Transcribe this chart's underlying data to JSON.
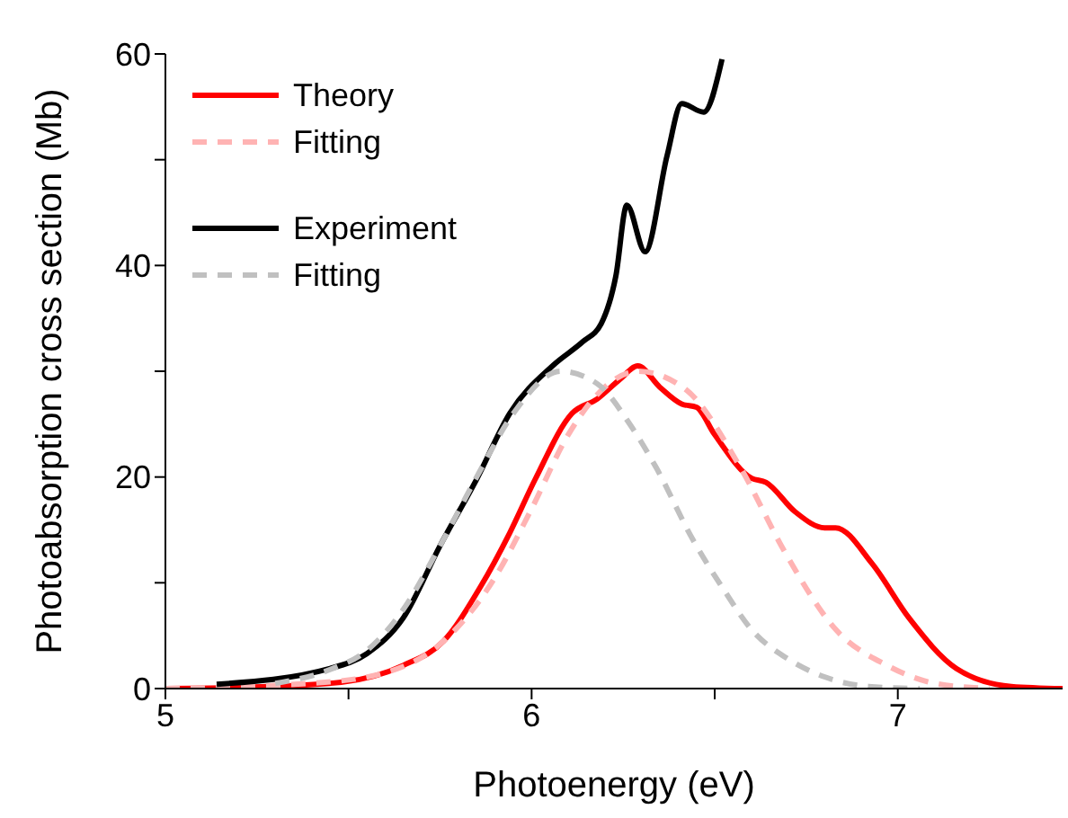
{
  "chart_data": {
    "type": "line",
    "xlabel": "Photoenergy (eV)",
    "ylabel": "Photoabsorption cross section (Mb)",
    "xlim": [
      5,
      7.45
    ],
    "xticks": [
      5,
      {
        "value": 5.5,
        "label": null
      },
      6,
      {
        "value": 6.5,
        "label": null
      },
      7
    ],
    "ylim": [
      0,
      60
    ],
    "yticks": [
      0,
      {
        "value": 10,
        "label": null
      },
      20,
      {
        "value": 30,
        "label": null
      },
      40,
      {
        "value": 50,
        "label": null
      },
      60
    ],
    "grid": false,
    "legend": "top left",
    "marker": "none",
    "series": [
      {
        "name": "Theory",
        "color": "#ff0000",
        "line_style": "solid",
        "x": [
          5,
          5.2,
          5.48,
          5.65,
          5.76,
          5.86,
          5.94,
          6.01,
          6.11,
          6.18,
          6.24,
          6.29,
          6.35,
          6.41,
          6.45,
          6.5,
          6.6,
          6.64,
          6.72,
          6.8,
          6.83,
          6.93,
          7.03,
          7.16,
          7.31,
          7.45
        ],
        "values": [
          0,
          0.1,
          0.6,
          2.2,
          4.5,
          9.6,
          14.7,
          19.8,
          26,
          27.4,
          29.2,
          30.5,
          28.5,
          26.9,
          26.6,
          24,
          19.9,
          19.5,
          16.7,
          15.2,
          15.2,
          11.8,
          6.7,
          1.9,
          0.2,
          0
        ]
      },
      {
        "name": "Fitting",
        "color": "#ffb3b3",
        "line_style": "dashed",
        "x": [
          5,
          5.4,
          5.6,
          5.76,
          5.9,
          6,
          6.1,
          6.2,
          6.29,
          6.42,
          6.57,
          6.69,
          6.83,
          6.97,
          7.1,
          7.25
        ],
        "values": [
          0,
          0.5,
          1.5,
          4.5,
          10.5,
          17,
          24,
          28.5,
          30,
          28.3,
          20.9,
          13,
          5.6,
          2.2,
          0.5,
          0
        ]
      },
      {
        "name": "Experiment",
        "color": "#000000",
        "line_style": "solid",
        "x": [
          5.14,
          5.45,
          5.55,
          5.65,
          5.75,
          5.85,
          5.94,
          6.06,
          6.14,
          6.19,
          6.23,
          6.26,
          6.31,
          6.37,
          6.41,
          6.47,
          6.52
        ],
        "values": [
          0.4,
          1.9,
          3.3,
          6.7,
          13.5,
          19.8,
          26,
          30.6,
          32.8,
          34.5,
          39,
          45.7,
          41.3,
          50.4,
          55.3,
          54.5,
          59.5
        ]
      },
      {
        "name": "Fitting",
        "color": "#c0c0c0",
        "line_style": "dashed",
        "x": [
          5.3,
          5.45,
          5.55,
          5.65,
          5.75,
          5.85,
          5.95,
          6.08,
          6.18,
          6.27,
          6.34,
          6.44,
          6.52,
          6.6,
          6.7,
          6.8,
          6.92,
          7.06
        ],
        "values": [
          0.5,
          1.8,
          3.6,
          7.5,
          13.5,
          20,
          26,
          30,
          28.8,
          24.9,
          20.9,
          14.1,
          9.6,
          5.6,
          2.8,
          1.1,
          0.2,
          0
        ]
      }
    ]
  }
}
